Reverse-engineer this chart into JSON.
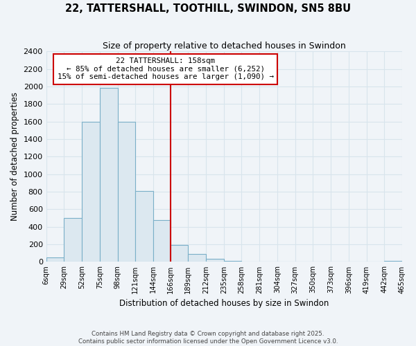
{
  "title": "22, TATTERSHALL, TOOTHILL, SWINDON, SN5 8BU",
  "subtitle": "Size of property relative to detached houses in Swindon",
  "xlabel": "Distribution of detached houses by size in Swindon",
  "ylabel": "Number of detached properties",
  "bar_color": "#dce8f0",
  "bar_edge_color": "#7aafc8",
  "bin_edges": [
    6,
    29,
    52,
    75,
    98,
    121,
    144,
    166,
    189,
    212,
    235,
    258,
    281,
    304,
    327,
    350,
    373,
    396,
    419,
    442,
    465
  ],
  "bin_labels": [
    "6sqm",
    "29sqm",
    "52sqm",
    "75sqm",
    "98sqm",
    "121sqm",
    "144sqm",
    "166sqm",
    "189sqm",
    "212sqm",
    "235sqm",
    "258sqm",
    "281sqm",
    "304sqm",
    "327sqm",
    "350sqm",
    "373sqm",
    "396sqm",
    "419sqm",
    "442sqm",
    "465sqm"
  ],
  "counts": [
    50,
    500,
    1600,
    1980,
    1600,
    810,
    480,
    190,
    90,
    35,
    10,
    5,
    0,
    0,
    0,
    0,
    0,
    0,
    0,
    15,
    0
  ],
  "vline_x": 166,
  "vline_color": "#cc0000",
  "ylim": [
    0,
    2400
  ],
  "yticks": [
    0,
    200,
    400,
    600,
    800,
    1000,
    1200,
    1400,
    1600,
    1800,
    2000,
    2200,
    2400
  ],
  "annotation_title": "22 TATTERSHALL: 158sqm",
  "annotation_line1": "← 85% of detached houses are smaller (6,252)",
  "annotation_line2": "15% of semi-detached houses are larger (1,090) →",
  "annotation_box_color": "#ffffff",
  "annotation_box_edge": "#cc0000",
  "footer1": "Contains HM Land Registry data © Crown copyright and database right 2025.",
  "footer2": "Contains public sector information licensed under the Open Government Licence v3.0.",
  "bg_color": "#f0f4f8",
  "grid_color": "#d8e4ec"
}
